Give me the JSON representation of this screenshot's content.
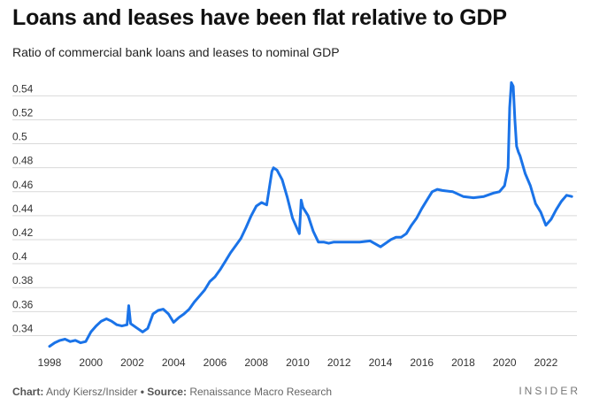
{
  "header": {
    "title": "Loans and leases have been flat relative to GDP",
    "subtitle": "Ratio of commercial bank loans and leases to nominal GDP"
  },
  "footer": {
    "chart_label": "Chart:",
    "chart_author": "Andy Kiersz/Insider",
    "bullet": "•",
    "source_label": "Source:",
    "source_text": "Renaissance Macro Research",
    "brand": "INSIDER"
  },
  "colors": {
    "line": "#1a73e8",
    "grid": "#d9d9d9",
    "text": "#111111"
  },
  "chart_data": {
    "type": "line",
    "title": "Loans and leases have been flat relative to GDP",
    "subtitle": "Ratio of commercial bank loans and leases to nominal GDP",
    "xlabel": "",
    "ylabel": "",
    "xlim": [
      1998,
      2023.5
    ],
    "ylim": [
      0.33,
      0.555
    ],
    "grid": true,
    "x_ticks": [
      1998,
      2000,
      2002,
      2004,
      2006,
      2008,
      2010,
      2012,
      2014,
      2016,
      2018,
      2020,
      2022
    ],
    "x_tick_labels": [
      "1998",
      "2000",
      "2002",
      "2004",
      "2006",
      "2008",
      "2010",
      "2012",
      "2014",
      "2016",
      "2018",
      "2020",
      "2022"
    ],
    "y_ticks": [
      0.34,
      0.36,
      0.38,
      0.4,
      0.42,
      0.44,
      0.46,
      0.48,
      0.5,
      0.52,
      0.54
    ],
    "y_tick_labels": [
      "0.34",
      "0.36",
      "0.38",
      "0.4",
      "0.42",
      "0.44",
      "0.46",
      "0.48",
      "0.5",
      "0.52",
      "0.54"
    ],
    "series": [
      {
        "x": [
          1998.0,
          1998.25,
          1998.5,
          1998.75,
          1999.0,
          1999.25,
          1999.5,
          1999.75,
          2000.0,
          2000.25,
          2000.5,
          2000.75,
          2001.0,
          2001.25,
          2001.5,
          2001.75,
          2001.83,
          2001.92,
          2002.0,
          2002.25,
          2002.5,
          2002.75,
          2003.0,
          2003.25,
          2003.5,
          2003.75,
          2004.0,
          2004.25,
          2004.5,
          2004.75,
          2005.0,
          2005.25,
          2005.5,
          2005.75,
          2006.0,
          2006.25,
          2006.5,
          2006.75,
          2007.0,
          2007.25,
          2007.5,
          2007.75,
          2008.0,
          2008.25,
          2008.5,
          2008.75,
          2008.83,
          2009.0,
          2009.25,
          2009.5,
          2009.75,
          2010.0,
          2010.08,
          2010.17,
          2010.25,
          2010.5,
          2010.75,
          2011.0,
          2011.25,
          2011.5,
          2011.75,
          2012.0,
          2012.5,
          2013.0,
          2013.5,
          2014.0,
          2014.25,
          2014.5,
          2014.75,
          2015.0,
          2015.25,
          2015.5,
          2015.75,
          2016.0,
          2016.25,
          2016.5,
          2016.75,
          2017.0,
          2017.5,
          2018.0,
          2018.5,
          2019.0,
          2019.5,
          2019.75,
          2020.0,
          2020.17,
          2020.25,
          2020.33,
          2020.42,
          2020.5,
          2020.58,
          2020.67,
          2020.75,
          2021.0,
          2021.25,
          2021.5,
          2021.75,
          2022.0,
          2022.25,
          2022.5,
          2022.75,
          2023.0,
          2023.25
        ],
        "y": [
          0.331,
          0.334,
          0.336,
          0.337,
          0.335,
          0.336,
          0.334,
          0.335,
          0.343,
          0.348,
          0.352,
          0.354,
          0.352,
          0.349,
          0.348,
          0.349,
          0.365,
          0.35,
          0.349,
          0.346,
          0.343,
          0.346,
          0.358,
          0.361,
          0.362,
          0.358,
          0.351,
          0.355,
          0.358,
          0.362,
          0.368,
          0.373,
          0.378,
          0.385,
          0.389,
          0.395,
          0.402,
          0.409,
          0.415,
          0.421,
          0.43,
          0.44,
          0.448,
          0.451,
          0.449,
          0.477,
          0.48,
          0.478,
          0.47,
          0.455,
          0.438,
          0.428,
          0.425,
          0.453,
          0.447,
          0.44,
          0.427,
          0.418,
          0.418,
          0.417,
          0.418,
          0.418,
          0.418,
          0.418,
          0.419,
          0.414,
          0.417,
          0.42,
          0.422,
          0.422,
          0.425,
          0.432,
          0.438,
          0.446,
          0.453,
          0.46,
          0.462,
          0.461,
          0.46,
          0.456,
          0.455,
          0.456,
          0.459,
          0.46,
          0.465,
          0.48,
          0.53,
          0.551,
          0.548,
          0.52,
          0.498,
          0.493,
          0.49,
          0.475,
          0.465,
          0.45,
          0.443,
          0.432,
          0.437,
          0.445,
          0.452,
          0.457,
          0.456
        ]
      }
    ]
  }
}
